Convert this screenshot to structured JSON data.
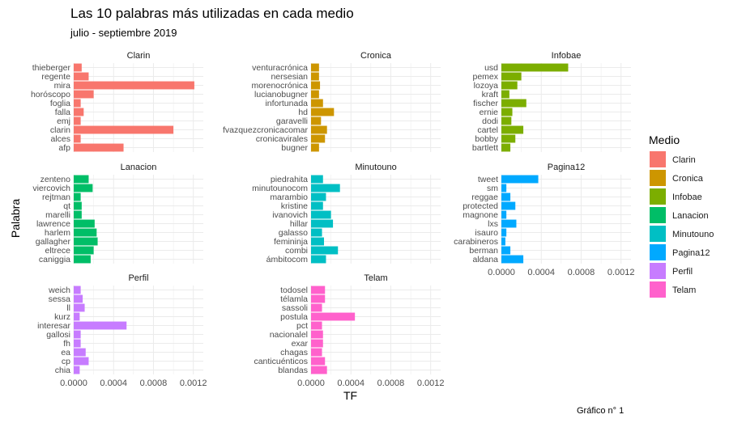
{
  "chart_data": {
    "type": "bar",
    "orientation": "horizontal",
    "title": "Las 10 palabras más utilizadas en cada medio",
    "subtitle": "julio - septiembre 2019",
    "xlabel": "TF",
    "ylabel": "Palabra",
    "xlim": [
      0,
      0.0013
    ],
    "x_ticks": [
      "0.0000",
      "0.0004",
      "0.0008",
      "0.0012"
    ],
    "grid": true,
    "legend": {
      "title": "Medio",
      "position": "right"
    },
    "caption": "Gráfico n° 1",
    "colors": {
      "Clarin": "#F8766D",
      "Cronica": "#CD9600",
      "Infobae": "#7CAE00",
      "Lanacion": "#00BE67",
      "Minutouno": "#00BFC4",
      "Pagina12": "#00A9FF",
      "Perfil": "#C77CFF",
      "Telam": "#FF61CC"
    },
    "panels": [
      {
        "medio": "Clarin",
        "categories": [
          "thieberger",
          "regente",
          "mira",
          "horóscopo",
          "foglia",
          "falla",
          "emj",
          "clarin",
          "alces",
          "afp"
        ],
        "values": [
          8e-05,
          0.00015,
          0.00121,
          0.0002,
          7e-05,
          0.0001,
          7e-05,
          0.001,
          7e-05,
          0.0005
        ]
      },
      {
        "medio": "Cronica",
        "categories": [
          "venturacrónica",
          "nersesian",
          "morenocrónica",
          "lucianobugner",
          "infortunada",
          "hd",
          "garavelli",
          "fvazquezcronicacomar",
          "cronicavirales",
          "bugner"
        ],
        "values": [
          8e-05,
          8e-05,
          9e-05,
          8e-05,
          0.00012,
          0.00023,
          0.0001,
          0.00016,
          0.00014,
          8e-05
        ]
      },
      {
        "medio": "Infobae",
        "categories": [
          "usd",
          "pemex",
          "lozoya",
          "kraft",
          "fischer",
          "ernie",
          "dodi",
          "cartel",
          "bobby",
          "bartlett"
        ],
        "values": [
          0.00067,
          0.0002,
          0.00016,
          8e-05,
          0.00025,
          0.00011,
          0.0001,
          0.00022,
          0.00014,
          9e-05
        ]
      },
      {
        "medio": "Lanacion",
        "categories": [
          "zenteno",
          "viercovich",
          "rejtman",
          "qt",
          "marelli",
          "lawrence",
          "harlem",
          "gallagher",
          "eltrece",
          "caniggia"
        ],
        "values": [
          0.00015,
          0.00019,
          7e-05,
          8e-05,
          8e-05,
          0.00021,
          0.00023,
          0.00024,
          0.0002,
          0.00017
        ]
      },
      {
        "medio": "Minutouno",
        "categories": [
          "piedrahita",
          "minutounocom",
          "marambio",
          "kristine",
          "ivanovich",
          "hillar",
          "galasso",
          "femininja",
          "combi",
          "ámbitocom"
        ],
        "values": [
          0.00012,
          0.00029,
          0.00015,
          0.00012,
          0.0002,
          0.00022,
          0.00011,
          0.00013,
          0.00027,
          0.00015
        ]
      },
      {
        "medio": "Pagina12",
        "categories": [
          "tweet",
          "sm",
          "reggae",
          "protected",
          "magnone",
          "lxs",
          "isauro",
          "carabineros",
          "berman",
          "aldana"
        ],
        "values": [
          0.00037,
          5e-05,
          9e-05,
          0.00014,
          5e-05,
          0.00015,
          5e-05,
          4e-05,
          9e-05,
          0.00022
        ]
      },
      {
        "medio": "Perfil",
        "categories": [
          "weich",
          "sessa",
          "ll",
          "kurz",
          "interesar",
          "gallosi",
          "fh",
          "ea",
          "cp",
          "chia"
        ],
        "values": [
          7e-05,
          9e-05,
          0.00011,
          6e-05,
          0.00053,
          7e-05,
          7e-05,
          0.00012,
          0.00015,
          6e-05
        ]
      },
      {
        "medio": "Telam",
        "categories": [
          "todosel",
          "télamla",
          "sassoli",
          "postula",
          "pct",
          "nacionalel",
          "exar",
          "chagas",
          "canticuénticos",
          "blandas"
        ],
        "values": [
          0.00014,
          0.00014,
          0.00011,
          0.00044,
          0.00011,
          0.00012,
          0.00012,
          0.00011,
          0.00014,
          0.00016
        ]
      }
    ]
  }
}
